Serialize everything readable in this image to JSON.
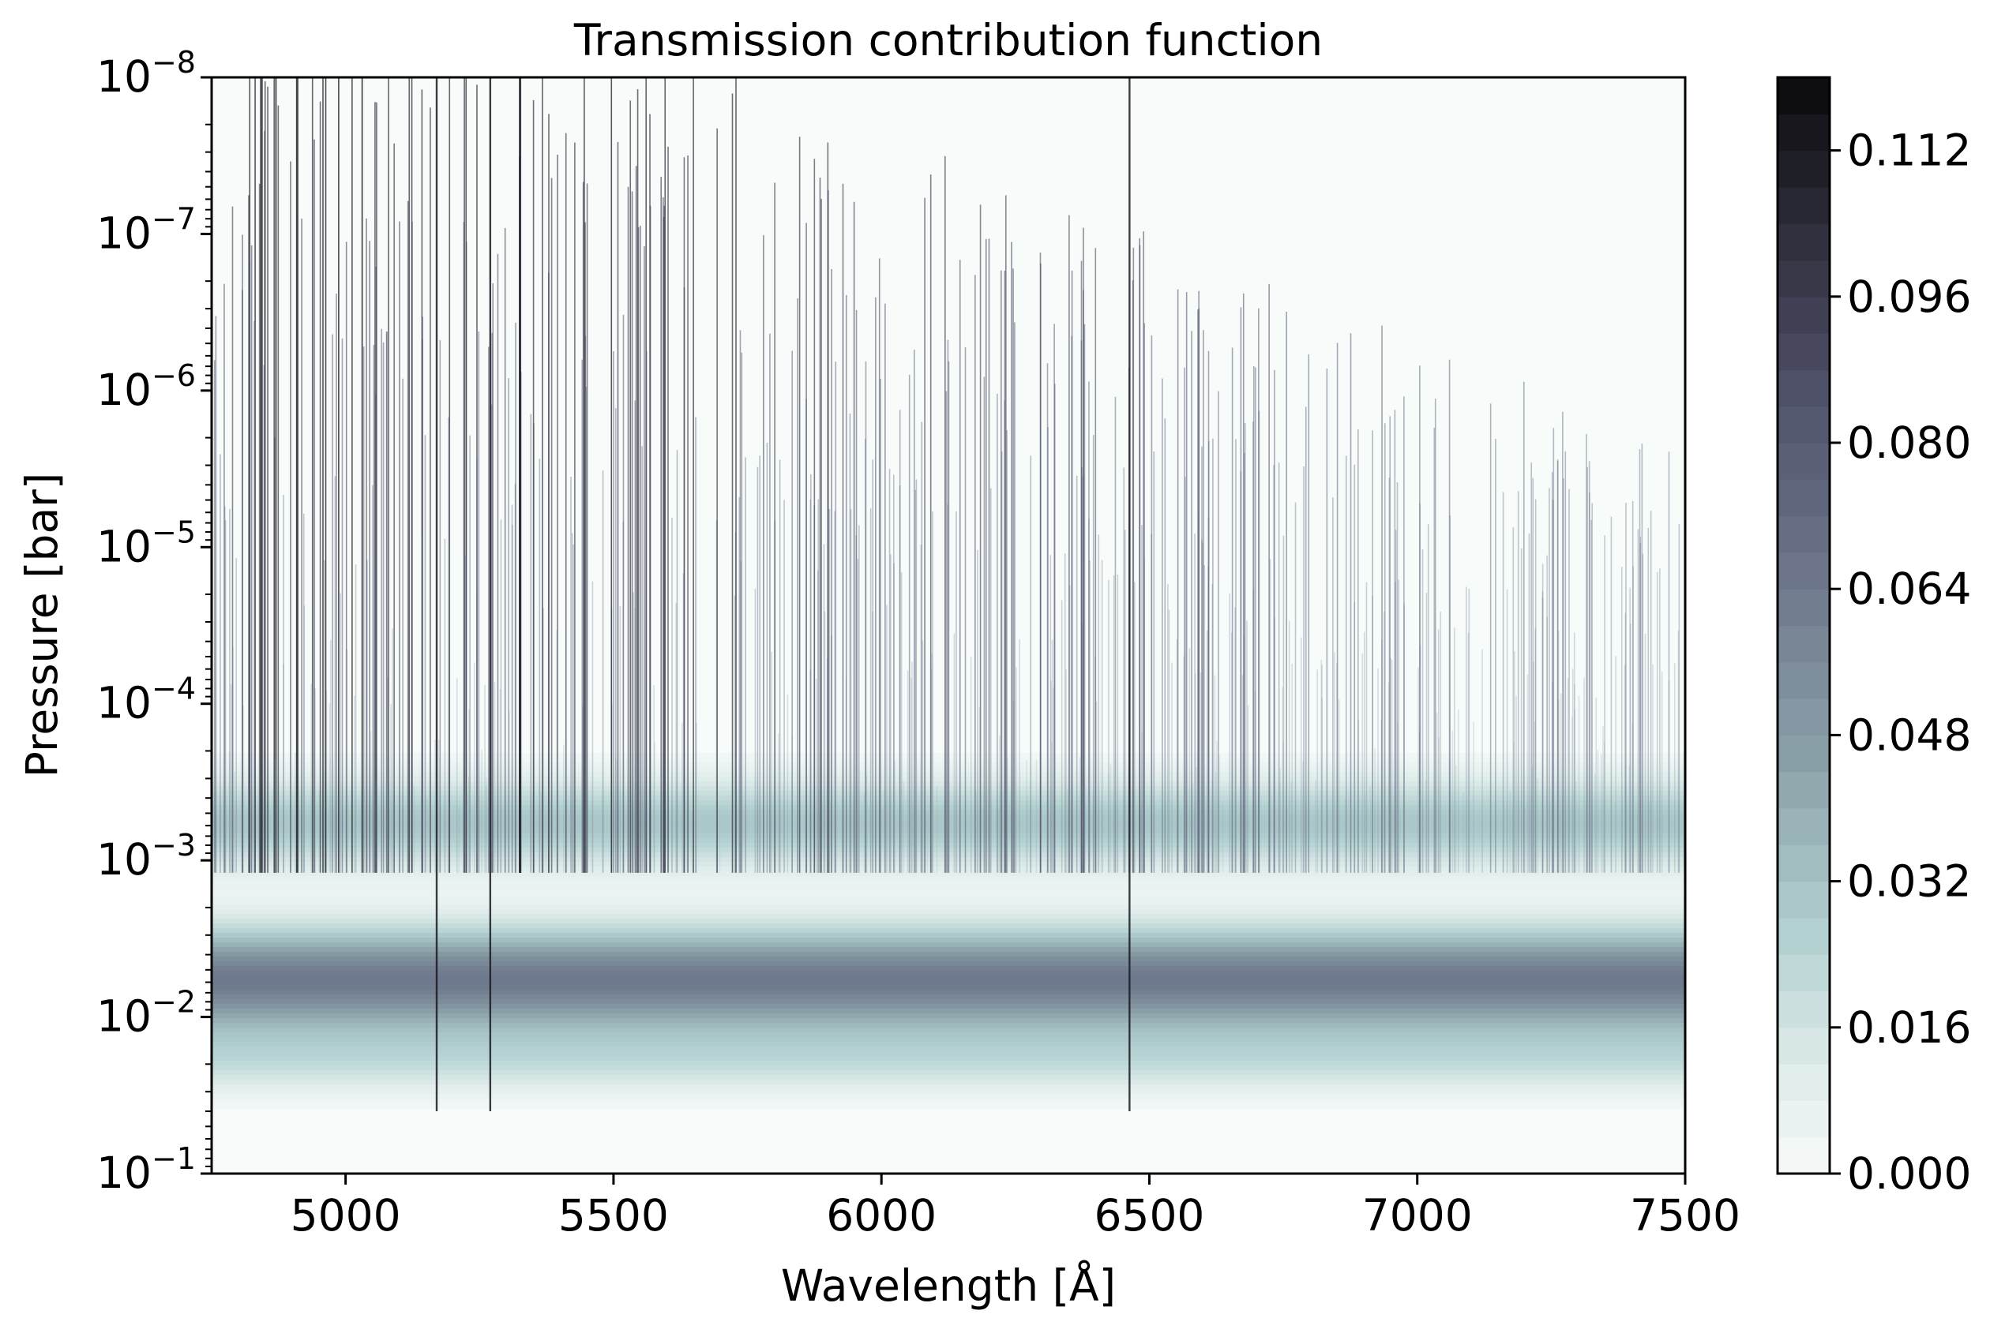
{
  "chart_data": {
    "type": "heatmap",
    "title": "Transmission contribution function",
    "xlabel": "Wavelength [Å]",
    "ylabel": "Pressure [bar]",
    "xlim": [
      4750,
      7500
    ],
    "ylim": [
      0.1,
      1e-08
    ],
    "y_scale": "log",
    "y_inverted": true,
    "x_ticks": [
      5000,
      5500,
      6000,
      6500,
      7000,
      7500
    ],
    "x_tick_labels": [
      "5000",
      "5500",
      "6000",
      "6500",
      "7000",
      "7500"
    ],
    "y_ticks": [
      1e-08,
      1e-07,
      1e-06,
      1e-05,
      0.0001,
      0.001,
      0.01,
      0.1
    ],
    "y_tick_labels": [
      {
        "base": "10",
        "exp": "−8"
      },
      {
        "base": "10",
        "exp": "−7"
      },
      {
        "base": "10",
        "exp": "−6"
      },
      {
        "base": "10",
        "exp": "−5"
      },
      {
        "base": "10",
        "exp": "−4"
      },
      {
        "base": "10",
        "exp": "−3"
      },
      {
        "base": "10",
        "exp": "−2"
      },
      {
        "base": "10",
        "exp": "−1"
      }
    ],
    "colormap": "bone_r",
    "color_range": [
      0.0,
      0.12
    ],
    "color_levels": 30,
    "colorbar_ticks": [
      0.0,
      0.016,
      0.032,
      0.048,
      0.064,
      0.08,
      0.096,
      0.112
    ],
    "colorbar_tick_labels": [
      "0.000",
      "0.016",
      "0.032",
      "0.048",
      "0.064",
      "0.080",
      "0.096",
      "0.112"
    ],
    "description_values": {
      "main_band_peak_pressure_bar": 0.005,
      "main_band_peak_value": 0.064,
      "secondary_band_pressure_bar": 0.0005,
      "secondary_band_value": 0.08,
      "strong_lines_wavelength": [
        5170,
        5270,
        6463
      ]
    }
  }
}
